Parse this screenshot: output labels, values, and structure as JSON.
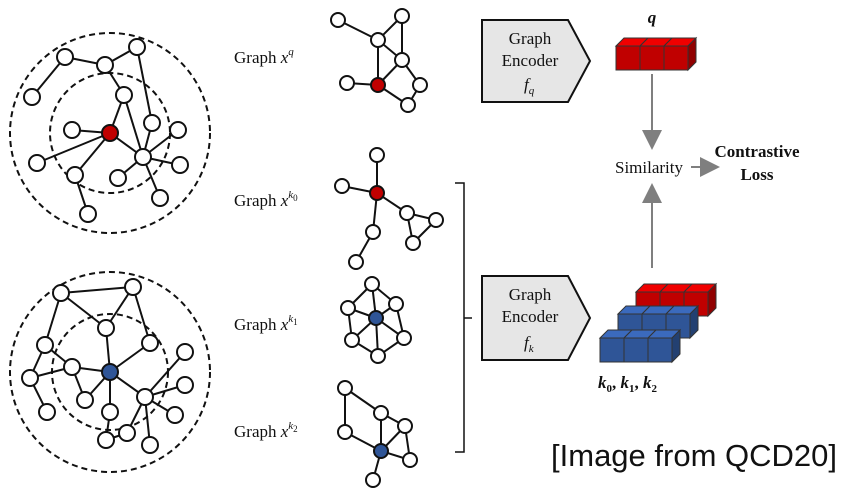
{
  "colors": {
    "query_accent": "#c00000",
    "key_accent": "#2f5597",
    "arrow_gray": "#7f7f7f",
    "encoder_fill": "#e6e6e6"
  },
  "left_panel": {
    "top_ego": {
      "center_color": "#c00000"
    },
    "bottom_ego": {
      "center_color": "#2f5597"
    }
  },
  "graph_labels": {
    "query": {
      "prefix": "Graph ",
      "var": "x",
      "sup": "q",
      "sub": ""
    },
    "k0": {
      "prefix": "Graph ",
      "var": "x",
      "sup": "k",
      "sub": "0"
    },
    "k1": {
      "prefix": "Graph ",
      "var": "x",
      "sup": "k",
      "sub": "1"
    },
    "k2": {
      "prefix": "Graph ",
      "var": "x",
      "sup": "k",
      "sub": "2"
    }
  },
  "encoders": {
    "query": {
      "line1": "Graph",
      "line2": "Encoder",
      "func": "f",
      "func_sub": "q"
    },
    "key": {
      "line1": "Graph",
      "line2": "Encoder",
      "func": "f",
      "func_sub": "k"
    }
  },
  "embeddings": {
    "query_label": "q",
    "keys_label": {
      "k0": "k",
      "k0_sub": "0",
      "k1": "k",
      "k1_sub": "1",
      "k2": "k",
      "k2_sub": "2"
    }
  },
  "similarity": {
    "label": "Similarity"
  },
  "loss": {
    "line1": "Contrastive",
    "line2": "Loss"
  },
  "caption": "[Image from QCD20]"
}
